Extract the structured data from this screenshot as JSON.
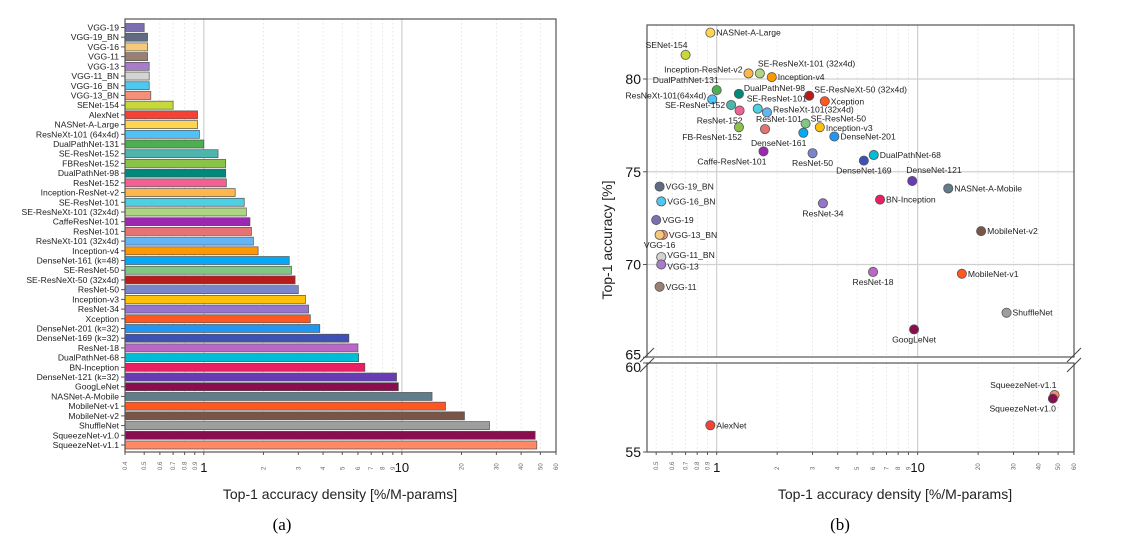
{
  "chart_data": [
    {
      "type": "bar",
      "orientation": "horizontal",
      "caption": "(a)",
      "xlabel": "Top-1 accuracy density [%/M-params]",
      "ylabel": "",
      "xscale": "log",
      "xlim": [
        0.4,
        60
      ],
      "x_tick_labels": [
        "0.4",
        "0.5",
        "0.6",
        "0.7",
        "0.8",
        "0.9",
        "1",
        "2",
        "3",
        "4",
        "5",
        "6",
        "7",
        "8",
        "9",
        "10",
        "20",
        "30",
        "40",
        "50",
        "60"
      ],
      "x_tick_values": [
        0.4,
        0.5,
        0.6,
        0.7,
        0.8,
        0.9,
        1,
        2,
        3,
        4,
        5,
        6,
        7,
        8,
        9,
        10,
        20,
        30,
        40,
        50,
        60
      ],
      "grid": "vertical",
      "categories": [
        "VGG-19",
        "VGG-19_BN",
        "VGG-16",
        "VGG-11",
        "VGG-13",
        "VGG-11_BN",
        "VGG-16_BN",
        "VGG-13_BN",
        "SENet-154",
        "AlexNet",
        "NASNet-A-Large",
        "ResNeXt-101 (64x4d)",
        "DualPathNet-131",
        "SE-ResNet-152",
        "FBResNet-152",
        "DualPathNet-98",
        "ResNet-152",
        "Inception-ResNet-v2",
        "SE-ResNet-101",
        "SE-ResNeXt-101 (32x4d)",
        "CaffeResNet-101",
        "ResNet-101",
        "ResNeXt-101 (32x4d)",
        "Inception-v4",
        "DenseNet-161 (k=48)",
        "SE-ResNet-50",
        "SE-ResNeXt-50 (32x4d)",
        "ResNet-50",
        "Inception-v3",
        "ResNet-34",
        "Xception",
        "DenseNet-201 (k=32)",
        "DenseNet-169 (k=32)",
        "ResNet-18",
        "DualPathNet-68",
        "BN-Inception",
        "DenseNet-121 (k=32)",
        "GoogLeNet",
        "NASNet-A-Mobile",
        "MobileNet-v1",
        "MobileNet-v2",
        "ShuffleNet",
        "SqueezeNet-v1.0",
        "SqueezeNet-v1.1"
      ],
      "values": [
        0.5,
        0.52,
        0.52,
        0.52,
        0.53,
        0.53,
        0.53,
        0.54,
        0.7,
        0.93,
        0.93,
        0.95,
        1.0,
        1.18,
        1.29,
        1.29,
        1.3,
        1.44,
        1.6,
        1.64,
        1.71,
        1.74,
        1.78,
        1.88,
        2.7,
        2.77,
        2.89,
        3.0,
        3.26,
        3.38,
        3.45,
        3.85,
        5.4,
        6.0,
        6.05,
        6.5,
        9.4,
        9.6,
        14.2,
        16.6,
        20.7,
        27.7,
        47.1,
        48.0
      ],
      "colors": [
        "#7b6fb0",
        "#5f6b80",
        "#f5c97a",
        "#9a7f73",
        "#a87cc9",
        "#d4d4d4",
        "#4fc8ef",
        "#f4907a",
        "#c8d83a",
        "#f44336",
        "#ffd54f",
        "#4fc3f7",
        "#4caf50",
        "#4db6ac",
        "#8bc34a",
        "#00897b",
        "#f06292",
        "#ffb74d",
        "#4dd0e1",
        "#aed581",
        "#9c27b0",
        "#e57373",
        "#64b5f6",
        "#ff9800",
        "#03a9f4",
        "#81c784",
        "#b71c1c",
        "#7986cb",
        "#ffc107",
        "#9575cd",
        "#ff5722",
        "#2196f3",
        "#3f51b5",
        "#ba68c8",
        "#00bcd4",
        "#e91e63",
        "#673ab7",
        "#880e4f",
        "#607d8b",
        "#ff5722",
        "#795548",
        "#9e9e9e",
        "#880e4f",
        "#ff8a65"
      ]
    },
    {
      "type": "scatter",
      "caption": "(b)",
      "xlabel": "Top-1 accuracy density [%/M-params]",
      "ylabel": "Top-1 accuracy [%]",
      "xscale": "log",
      "xlim": [
        0.45,
        60
      ],
      "ylim": [
        55,
        83
      ],
      "y_axis_break": [
        60,
        65
      ],
      "x_tick_labels": [
        "0.5",
        "0.6",
        "0.7",
        "0.8",
        "0.9",
        "1",
        "2",
        "3",
        "4",
        "5",
        "6",
        "7",
        "8",
        "9",
        "10",
        "20",
        "30",
        "40",
        "50",
        "60"
      ],
      "x_tick_values": [
        0.5,
        0.6,
        0.7,
        0.8,
        0.9,
        1,
        2,
        3,
        4,
        5,
        6,
        7,
        8,
        9,
        10,
        20,
        30,
        40,
        50,
        60
      ],
      "y_tick_labels": [
        "55",
        "60",
        "65",
        "70",
        "75",
        "80"
      ],
      "y_tick_values": [
        55,
        60,
        65,
        70,
        75,
        80
      ],
      "grid": "both",
      "points": [
        {
          "label": "NASNet-A-Large",
          "x": 0.93,
          "y": 82.5,
          "color": "#ffd54f"
        },
        {
          "label": "SENet-154",
          "x": 0.7,
          "y": 81.3,
          "color": "#c8d83a"
        },
        {
          "label": "Inception-ResNet-v2",
          "x": 1.44,
          "y": 80.3,
          "color": "#ffb74d"
        },
        {
          "label": "SE-ResNeXt-101 (32x4d)",
          "x": 1.64,
          "y": 80.3,
          "color": "#aed581"
        },
        {
          "label": "Inception-v4",
          "x": 1.88,
          "y": 80.1,
          "color": "#ff9800"
        },
        {
          "label": "DualPathNet-131",
          "x": 1.0,
          "y": 79.4,
          "color": "#4caf50"
        },
        {
          "label": "ResNeXt-101(64x4d)",
          "x": 0.95,
          "y": 78.9,
          "color": "#4fc3f7"
        },
        {
          "label": "DualPathNet-98",
          "x": 1.29,
          "y": 79.2,
          "color": "#00897b"
        },
        {
          "label": "SE-ResNeXt-50 (32x4d)",
          "x": 2.89,
          "y": 79.1,
          "color": "#b71c1c"
        },
        {
          "label": "Xception",
          "x": 3.45,
          "y": 78.8,
          "color": "#ff5722"
        },
        {
          "label": "SE-ResNet-152",
          "x": 1.18,
          "y": 78.6,
          "color": "#4db6ac"
        },
        {
          "label": "ResNet-152",
          "x": 1.3,
          "y": 78.3,
          "color": "#f06292"
        },
        {
          "label": "SE-ResNet-101",
          "x": 1.6,
          "y": 78.4,
          "color": "#4dd0e1"
        },
        {
          "label": "ResNeXt-101(32x4d)",
          "x": 1.78,
          "y": 78.2,
          "color": "#64b5f6"
        },
        {
          "label": "FB-ResNet-152",
          "x": 1.29,
          "y": 77.4,
          "color": "#8bc34a"
        },
        {
          "label": "ResNet-101",
          "x": 1.74,
          "y": 77.3,
          "color": "#e57373"
        },
        {
          "label": "SE-ResNet-50",
          "x": 2.77,
          "y": 77.6,
          "color": "#81c784"
        },
        {
          "label": "Inception-v3",
          "x": 3.26,
          "y": 77.4,
          "color": "#ffc107"
        },
        {
          "label": "DenseNet-161",
          "x": 2.7,
          "y": 77.1,
          "color": "#03a9f4"
        },
        {
          "label": "DenseNet-201",
          "x": 3.85,
          "y": 76.9,
          "color": "#2196f3"
        },
        {
          "label": "Caffe-ResNet-101",
          "x": 1.71,
          "y": 76.1,
          "color": "#9c27b0"
        },
        {
          "label": "ResNet-50",
          "x": 3.0,
          "y": 76.0,
          "color": "#7986cb"
        },
        {
          "label": "DualPathNet-68",
          "x": 6.05,
          "y": 75.9,
          "color": "#00bcd4"
        },
        {
          "label": "DenseNet-169",
          "x": 5.4,
          "y": 75.6,
          "color": "#3f51b5"
        },
        {
          "label": "DenseNet-121",
          "x": 9.4,
          "y": 74.5,
          "color": "#673ab7"
        },
        {
          "label": "NASNet-A-Mobile",
          "x": 14.2,
          "y": 74.1,
          "color": "#607d8b"
        },
        {
          "label": "BN-Inception",
          "x": 6.5,
          "y": 73.5,
          "color": "#e91e63"
        },
        {
          "label": "ResNet-34",
          "x": 3.38,
          "y": 73.3,
          "color": "#9575cd"
        },
        {
          "label": "MobileNet-v2",
          "x": 20.7,
          "y": 71.8,
          "color": "#795548"
        },
        {
          "label": "ResNet-18",
          "x": 6.0,
          "y": 69.6,
          "color": "#ba68c8"
        },
        {
          "label": "MobileNet-v1",
          "x": 16.6,
          "y": 69.5,
          "color": "#ff5722"
        },
        {
          "label": "ShuffleNet",
          "x": 27.7,
          "y": 67.4,
          "color": "#9e9e9e"
        },
        {
          "label": "GoogLeNet",
          "x": 9.6,
          "y": 66.5,
          "color": "#880e4f"
        },
        {
          "label": "VGG-19_BN",
          "x": 0.52,
          "y": 74.2,
          "color": "#5f6b80"
        },
        {
          "label": "VGG-16_BN",
          "x": 0.53,
          "y": 73.4,
          "color": "#4fc8ef"
        },
        {
          "label": "VGG-19",
          "x": 0.5,
          "y": 72.4,
          "color": "#7b6fb0"
        },
        {
          "label": "VGG-13_BN",
          "x": 0.54,
          "y": 71.6,
          "color": "#f4907a"
        },
        {
          "label": "VGG-16",
          "x": 0.52,
          "y": 71.6,
          "color": "#f5c97a"
        },
        {
          "label": "VGG-11_BN",
          "x": 0.53,
          "y": 70.4,
          "color": "#d4d4d4"
        },
        {
          "label": "VGG-13",
          "x": 0.53,
          "y": 70.0,
          "color": "#a87cc9"
        },
        {
          "label": "VGG-11",
          "x": 0.52,
          "y": 68.8,
          "color": "#9a7f73"
        },
        {
          "label": "SqueezeNet-v1.1",
          "x": 48.0,
          "y": 58.2,
          "color": "#ff8a65"
        },
        {
          "label": "SqueezeNet-v1.0",
          "x": 47.1,
          "y": 58.0,
          "color": "#880e4f"
        },
        {
          "label": "AlexNet",
          "x": 0.93,
          "y": 56.5,
          "color": "#f44336"
        }
      ]
    }
  ]
}
